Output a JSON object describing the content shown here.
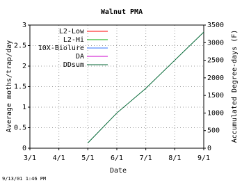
{
  "chart_data": {
    "type": "line",
    "title": "Walnut PMA",
    "xlabel": "Date",
    "ylabel": "Average moths/trap/day",
    "y2label": "Accumulated Degree-days (F)",
    "categories": [
      "3/1",
      "4/1",
      "5/1",
      "6/1",
      "7/1",
      "8/1",
      "9/1"
    ],
    "ylim": [
      0,
      3
    ],
    "yticks": [
      0,
      0.5,
      1,
      1.5,
      2,
      2.5,
      3
    ],
    "y2lim": [
      0,
      3500
    ],
    "y2ticks": [
      0,
      500,
      1000,
      1500,
      2000,
      2500,
      3000,
      3500
    ],
    "grid": true,
    "series": [
      {
        "name": "L2-Low",
        "color": "#ff0000",
        "values": [
          null,
          null,
          null,
          null,
          null,
          null,
          null
        ]
      },
      {
        "name": "L2-Hi",
        "color": "#00aa00",
        "values": [
          null,
          null,
          null,
          null,
          null,
          null,
          null
        ]
      },
      {
        "name": "10X-Biolure",
        "color": "#3070ff",
        "values": [
          null,
          null,
          null,
          null,
          null,
          null,
          null
        ]
      },
      {
        "name": "DA",
        "color": "#cc00cc",
        "values": [
          null,
          null,
          null,
          null,
          null,
          null,
          null
        ]
      },
      {
        "name": "DDsum",
        "color": "#006633",
        "axis": "y2",
        "values": [
          null,
          null,
          150,
          1000,
          1700,
          2500,
          3300
        ]
      }
    ],
    "footer": "9/13/01 1:46 PM"
  }
}
